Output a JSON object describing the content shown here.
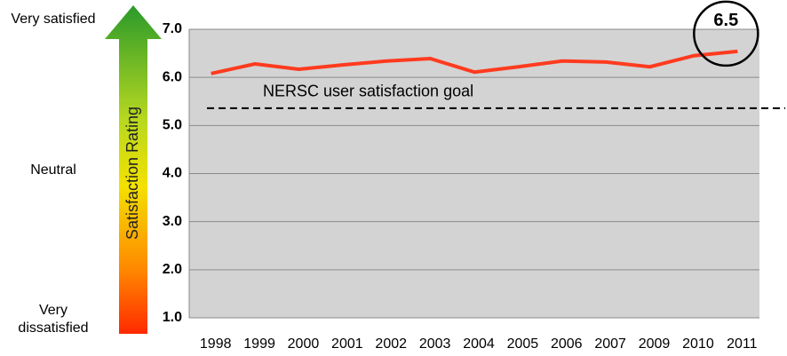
{
  "chart_data": {
    "type": "line",
    "categories": [
      "1998",
      "1999",
      "2000",
      "2001",
      "2002",
      "2003",
      "2004",
      "2005",
      "2006",
      "2007",
      "2009",
      "2010",
      "2011"
    ],
    "series": [
      {
        "name": "NERSC user satisfaction",
        "color": "#ff3b1f",
        "values": [
          6.08,
          6.28,
          6.17,
          6.26,
          6.34,
          6.39,
          6.11,
          6.22,
          6.34,
          6.32,
          6.22,
          6.45,
          6.54
        ],
        "value_labels": [
          null,
          null,
          null,
          null,
          null,
          null,
          null,
          null,
          null,
          null,
          null,
          null,
          "6.5"
        ]
      }
    ],
    "ylim": [
      1,
      7
    ],
    "yticks": [
      {
        "value": 1,
        "label": "1.0"
      },
      {
        "value": 2,
        "label": "2.0"
      },
      {
        "value": 3,
        "label": "3.0"
      },
      {
        "value": 4,
        "label": "4.0"
      },
      {
        "value": 5,
        "label": "5.0"
      },
      {
        "value": 6,
        "label": "6.0"
      },
      {
        "value": 7,
        "label": "7.0"
      }
    ],
    "grid": true,
    "goal": {
      "value": 5.36,
      "label": "NERSC user satisfaction goal"
    },
    "rating_scale": {
      "title": "Satisfaction Rating",
      "top": "Very satisfied",
      "middle": "Neutral",
      "bottom": "Very dissatisfied"
    }
  }
}
